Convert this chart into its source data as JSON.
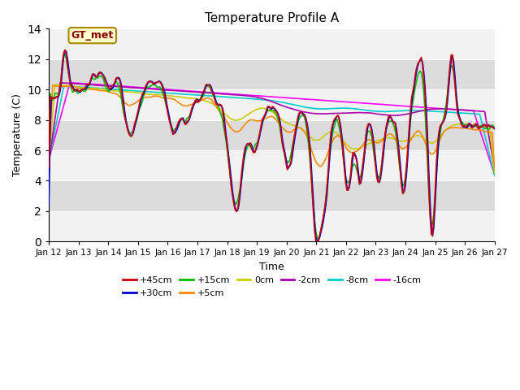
{
  "title": "Temperature Profile A",
  "xlabel": "Time",
  "ylabel": "Temperature (C)",
  "ylim": [
    0,
    14
  ],
  "background_color": "#ffffff",
  "plot_bg_color": "#dcdcdc",
  "grid_color": "#f0f0f0",
  "series": {
    "+45cm": {
      "color": "#cc0000",
      "lw": 1.2
    },
    "+30cm": {
      "color": "#0000cc",
      "lw": 1.2
    },
    "+15cm": {
      "color": "#00bb00",
      "lw": 1.2
    },
    "+5cm": {
      "color": "#ff8800",
      "lw": 1.2
    },
    "0cm": {
      "color": "#cccc00",
      "lw": 1.2
    },
    "-2cm": {
      "color": "#aa00aa",
      "lw": 1.2
    },
    "-8cm": {
      "color": "#00cccc",
      "lw": 1.2
    },
    "-16cm": {
      "color": "#ff00ff",
      "lw": 1.2
    }
  },
  "yticks": [
    0,
    2,
    4,
    6,
    8,
    10,
    12,
    14
  ],
  "xtick_labels": [
    "Jan 12",
    "Jan 13",
    "Jan 14",
    "Jan 15",
    "Jan 16",
    "Jan 17",
    "Jan 18",
    "Jan 19",
    "Jan 20",
    "Jan 21",
    "Jan 22",
    "Jan 23",
    "Jan 24",
    "Jan 25",
    "Jan 26",
    "Jan 27"
  ],
  "legend_label": "GT_met",
  "legend_bg": "#ffffcc",
  "legend_border": "#aa8800"
}
